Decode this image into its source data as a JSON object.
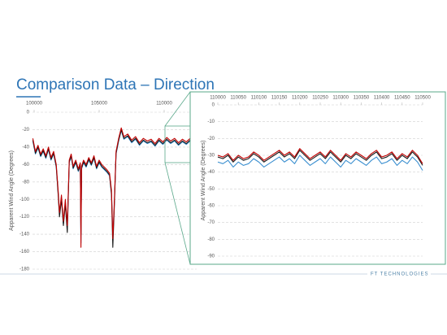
{
  "title": "Comparison Data – Direction",
  "footer": "FT TECHNOLOGIES",
  "chart_data": [
    {
      "type": "line",
      "y_label": "Apparent Wind Angle (Degrees)",
      "x": [
        99900,
        100100,
        100300,
        100500,
        100700,
        100900,
        101100,
        101300,
        101500,
        101700,
        101850,
        101950,
        102100,
        102250,
        102400,
        102550,
        102700,
        102850,
        103000,
        103200,
        103400,
        103550,
        103600,
        103650,
        103800,
        104000,
        104200,
        104400,
        104600,
        104800,
        105000,
        105200,
        105400,
        105600,
        105800,
        105950,
        106050,
        106150,
        106300,
        106500,
        106700,
        106900,
        107200,
        107500,
        107800,
        108100,
        108400,
        108700,
        109000,
        109300,
        109600,
        109900,
        110200,
        110500,
        110800,
        111100,
        111400,
        111700,
        112000,
        112300
      ],
      "series": [
        {
          "color": "#3a8fd0",
          "values": [
            -33,
            -48,
            -41,
            -51,
            -45,
            -53,
            -43,
            -55,
            -48,
            -63,
            -93,
            -118,
            -98,
            -128,
            -103,
            -133,
            -58,
            -51,
            -65,
            -58,
            -68,
            -61,
            -150,
            -65,
            -58,
            -63,
            -55,
            -61,
            -53,
            -65,
            -58,
            -63,
            -66,
            -69,
            -73,
            -93,
            -140,
            -113,
            -48,
            -33,
            -21,
            -31,
            -28,
            -35,
            -31,
            -38,
            -33,
            -36,
            -34,
            -39,
            -33,
            -37,
            -32,
            -36,
            -33,
            -38,
            -34,
            -37,
            -33,
            -36
          ]
        },
        {
          "color": "#1a1a1a",
          "values": [
            -32,
            -47,
            -40,
            -50,
            -44,
            -52,
            -42,
            -54,
            -47,
            -62,
            -95,
            -120,
            -100,
            -130,
            -105,
            -138,
            -57,
            -50,
            -64,
            -57,
            -67,
            -60,
            -140,
            -64,
            -57,
            -62,
            -54,
            -60,
            -52,
            -64,
            -57,
            -62,
            -65,
            -68,
            -72,
            -95,
            -155,
            -115,
            -47,
            -32,
            -20,
            -30,
            -27,
            -34,
            -30,
            -37,
            -32,
            -35,
            -33,
            -38,
            -32,
            -36,
            -31,
            -35,
            -32,
            -37,
            -33,
            -36,
            -32,
            -35
          ]
        },
        {
          "color": "#c00000",
          "values": [
            -30,
            -45,
            -38,
            -48,
            -42,
            -50,
            -40,
            -52,
            -45,
            -60,
            -90,
            -115,
            -95,
            -125,
            -100,
            -130,
            -55,
            -48,
            -62,
            -55,
            -65,
            -58,
            -155,
            -62,
            -55,
            -60,
            -52,
            -58,
            -50,
            -62,
            -55,
            -60,
            -63,
            -66,
            -70,
            -90,
            -145,
            -110,
            -45,
            -30,
            -18,
            -28,
            -25,
            -32,
            -28,
            -35,
            -30,
            -33,
            -31,
            -36,
            -30,
            -34,
            -29,
            -33,
            -30,
            -35,
            -31,
            -34,
            -30,
            -33
          ]
        }
      ],
      "xlim": [
        99875,
        112500
      ],
      "xticks": [
        100000,
        105000,
        110000
      ],
      "ylim": [
        -180,
        0
      ],
      "yticks": [
        0,
        -20,
        -40,
        -60,
        -80,
        -100,
        -120,
        -140,
        -160,
        -180
      ],
      "grid": true
    },
    {
      "type": "line",
      "y_label": "Apparent Wind Angle (Degrees)",
      "x": [
        110000,
        110012.5,
        110025,
        110037.5,
        110050,
        110062.5,
        110075,
        110087.5,
        110100,
        110112.5,
        110125,
        110137.5,
        110150,
        110162.5,
        110175,
        110187.5,
        110200,
        110212.5,
        110225,
        110237.5,
        110250,
        110262.5,
        110275,
        110287.5,
        110300,
        110312.5,
        110325,
        110337.5,
        110350,
        110362.5,
        110375,
        110387.5,
        110400,
        110412.5,
        110425,
        110437.5,
        110450,
        110462.5,
        110475,
        110487.5,
        110500
      ],
      "series": [
        {
          "color": "#3a8fd0",
          "values": [
            -34,
            -35,
            -33,
            -37,
            -34,
            -36,
            -35,
            -32,
            -34,
            -37,
            -35,
            -33,
            -31,
            -34,
            -32,
            -35,
            -30,
            -33,
            -36,
            -34,
            -32,
            -35,
            -31,
            -34,
            -37,
            -33,
            -35,
            -32,
            -34,
            -36,
            -33,
            -31,
            -35,
            -34,
            -32,
            -36,
            -33,
            -35,
            -31,
            -34,
            -39
          ]
        },
        {
          "color": "#1a1a1a",
          "values": [
            -31,
            -32,
            -30,
            -34,
            -31,
            -33,
            -32,
            -29,
            -31,
            -34,
            -32,
            -30,
            -28,
            -31,
            -29,
            -32,
            -27,
            -30,
            -33,
            -31,
            -29,
            -32,
            -28,
            -31,
            -34,
            -30,
            -32,
            -29,
            -31,
            -33,
            -30,
            -28,
            -32,
            -31,
            -29,
            -33,
            -30,
            -32,
            -28,
            -31,
            -36
          ]
        },
        {
          "color": "#c00000",
          "values": [
            -30,
            -31,
            -29,
            -33,
            -30,
            -32,
            -31,
            -28,
            -30,
            -33,
            -31,
            -29,
            -27,
            -30,
            -28,
            -31,
            -26,
            -29,
            -32,
            -30,
            -28,
            -31,
            -27,
            -30,
            -33,
            -29,
            -31,
            -28,
            -30,
            -32,
            -29,
            -27,
            -31,
            -30,
            -28,
            -32,
            -29,
            -31,
            -27,
            -30,
            -35
          ]
        }
      ],
      "xlim": [
        110000,
        110500
      ],
      "xticks": [
        110000,
        110050,
        110100,
        110150,
        110200,
        110250,
        110300,
        110350,
        110400,
        110450,
        110500
      ],
      "ylim": [
        -90,
        0
      ],
      "yticks": [
        0,
        -10,
        -20,
        -30,
        -40,
        -50,
        -60,
        -70,
        -80,
        -90
      ],
      "grid": true
    }
  ]
}
